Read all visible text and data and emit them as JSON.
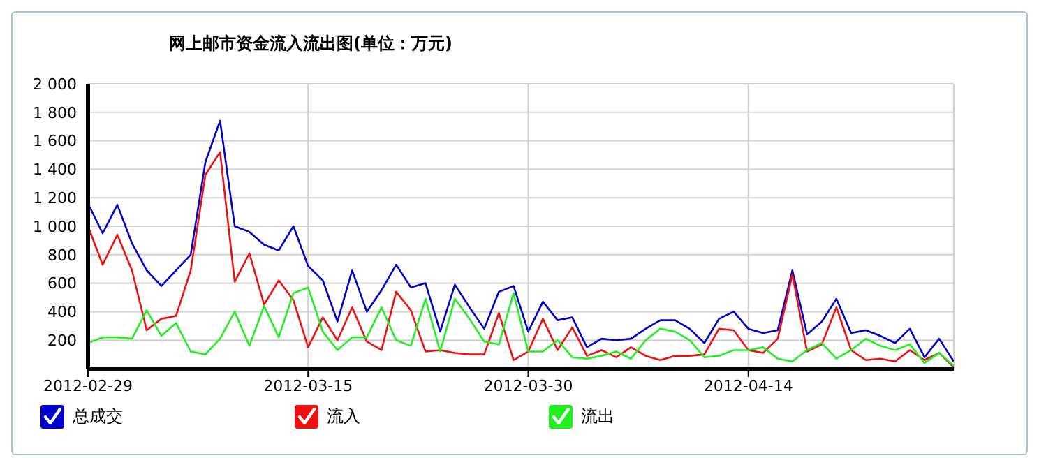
{
  "chart_data": {
    "type": "line",
    "title": "网上邮市资金流入流出图(单位：万元)",
    "x": [
      "2012-02-29",
      "2012-03-01",
      "2012-03-02",
      "2012-03-03",
      "2012-03-04",
      "2012-03-05",
      "2012-03-06",
      "2012-03-07",
      "2012-03-08",
      "2012-03-09",
      "2012-03-10",
      "2012-03-11",
      "2012-03-12",
      "2012-03-13",
      "2012-03-14",
      "2012-03-15",
      "2012-03-16",
      "2012-03-17",
      "2012-03-18",
      "2012-03-19",
      "2012-03-20",
      "2012-03-21",
      "2012-03-22",
      "2012-03-23",
      "2012-03-24",
      "2012-03-25",
      "2012-03-26",
      "2012-03-27",
      "2012-03-28",
      "2012-03-29",
      "2012-03-30",
      "2012-03-31",
      "2012-04-01",
      "2012-04-02",
      "2012-04-03",
      "2012-04-04",
      "2012-04-05",
      "2012-04-06",
      "2012-04-07",
      "2012-04-08",
      "2012-04-09",
      "2012-04-10",
      "2012-04-11",
      "2012-04-12",
      "2012-04-13",
      "2012-04-14",
      "2012-04-15",
      "2012-04-16",
      "2012-04-17",
      "2012-04-18",
      "2012-04-19",
      "2012-04-20",
      "2012-04-21",
      "2012-04-22",
      "2012-04-23",
      "2012-04-24",
      "2012-04-25",
      "2012-04-26",
      "2012-04-27",
      "2012-04-28"
    ],
    "series": [
      {
        "name": "总成交",
        "color": "#0000cc",
        "values": [
          1160,
          950,
          1150,
          880,
          690,
          580,
          690,
          800,
          1450,
          1740,
          1000,
          960,
          870,
          830,
          1000,
          720,
          620,
          330,
          690,
          400,
          550,
          730,
          570,
          600,
          260,
          590,
          430,
          280,
          540,
          580,
          260,
          470,
          340,
          360,
          150,
          210,
          200,
          210,
          280,
          340,
          340,
          280,
          180,
          350,
          400,
          280,
          250,
          270,
          690,
          240,
          330,
          490,
          250,
          270,
          230,
          180,
          280,
          80,
          210,
          50
        ]
      },
      {
        "name": "流入",
        "color": "#ee1111",
        "values": [
          1000,
          730,
          940,
          690,
          270,
          350,
          370,
          690,
          1360,
          1520,
          610,
          810,
          450,
          620,
          480,
          150,
          360,
          200,
          430,
          190,
          130,
          540,
          410,
          120,
          130,
          110,
          100,
          100,
          390,
          60,
          120,
          350,
          130,
          290,
          90,
          130,
          80,
          150,
          90,
          60,
          90,
          90,
          100,
          280,
          270,
          130,
          110,
          210,
          660,
          120,
          170,
          430,
          130,
          60,
          70,
          50,
          130,
          60,
          110,
          10
        ]
      },
      {
        "name": "流出",
        "color": "#22ee22",
        "values": [
          180,
          220,
          220,
          210,
          410,
          230,
          320,
          120,
          100,
          210,
          400,
          160,
          440,
          220,
          530,
          570,
          260,
          130,
          220,
          220,
          430,
          200,
          160,
          490,
          120,
          490,
          350,
          190,
          170,
          530,
          120,
          120,
          200,
          80,
          70,
          90,
          120,
          70,
          200,
          280,
          260,
          200,
          80,
          90,
          130,
          130,
          150,
          70,
          50,
          130,
          180,
          70,
          130,
          210,
          160,
          130,
          170,
          40,
          110,
          20
        ]
      }
    ],
    "xlim": [
      "2012-02-29",
      "2012-04-28"
    ],
    "xticks": [
      "2012-02-29",
      "2012-03-15",
      "2012-03-30",
      "2012-04-14"
    ],
    "ylim": [
      0,
      2000
    ],
    "yticks": [
      {
        "value": 0,
        "label": null
      },
      200,
      400,
      600,
      800,
      1000,
      1200,
      1400,
      1600,
      1800,
      2000
    ],
    "grid": true,
    "legend": "bottom",
    "marker": "none",
    "line_style": "solid"
  }
}
